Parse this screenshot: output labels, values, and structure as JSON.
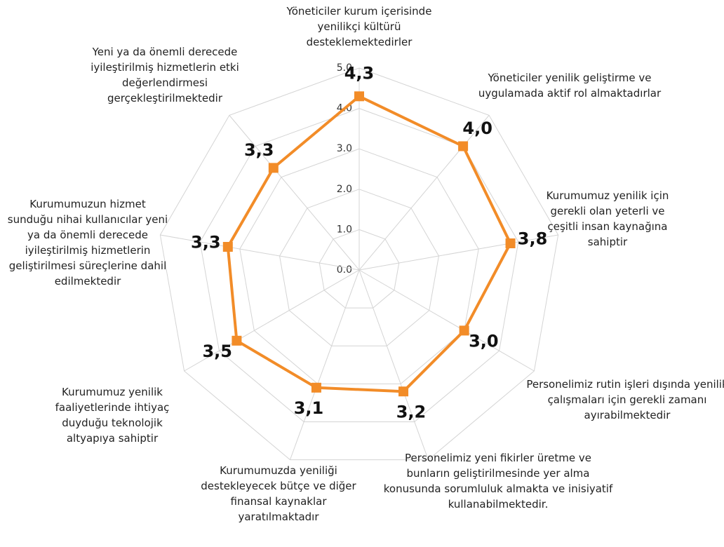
{
  "chart_data": {
    "type": "radar",
    "categories": [
      "Yöneticiler kurum içerisinde yenilikçi kültürü desteklemektedirler",
      "Yöneticiler yenilik geliştirme ve uygulamada aktif rol almaktadırlar",
      "Kurumumuz yenilik için gerekli olan yeterli ve çeşitli insan kaynağına sahiptir",
      "Personelimiz rutin işleri dışında yenilik çalışmaları için gerekli zamanı ayırabilmektedir",
      "Personelimiz yeni fikirler üretme ve bunların geliştirilmesinde yer alma konusunda sorumluluk almakta ve inisiyatif kullanabilmektedir.",
      "Kurumumuzda yeniliği destekleyecek bütçe ve diğer finansal kaynaklar yaratılmaktadır",
      "Kurumumuz yenilik faaliyetlerinde ihtiyaç duyduğu teknolojik altyapıya sahiptir",
      "Kurumumuzun hizmet sunduğu nihai kullanıcılar yeni ya da önemli derecede iyileştirilmiş hizmetlerin geliştirilmesi süreçlerine dahil edilmektedir",
      "Yeni ya da önemli derecede iyileştirilmiş hizmetlerin etki değerlendirmesi gerçekleştirilmektedir"
    ],
    "values": [
      4.3,
      4.0,
      3.8,
      3.0,
      3.2,
      3.1,
      3.5,
      3.3,
      3.3
    ],
    "value_labels": [
      "4,3",
      "4,0",
      "3,8",
      "3,0",
      "3,2",
      "3,1",
      "3,5",
      "3,3",
      "3,3"
    ],
    "color": "#f28c28",
    "ylim": [
      0,
      5
    ],
    "yticks": [
      {
        "value": 0,
        "label": "0.0"
      },
      {
        "value": 1,
        "label": "1.0"
      },
      {
        "value": 2,
        "label": "2.0"
      },
      {
        "value": 3,
        "label": "3.0"
      },
      {
        "value": 4,
        "label": "4.0"
      },
      {
        "value": 5,
        "label": "5.0"
      }
    ],
    "grid": true
  }
}
